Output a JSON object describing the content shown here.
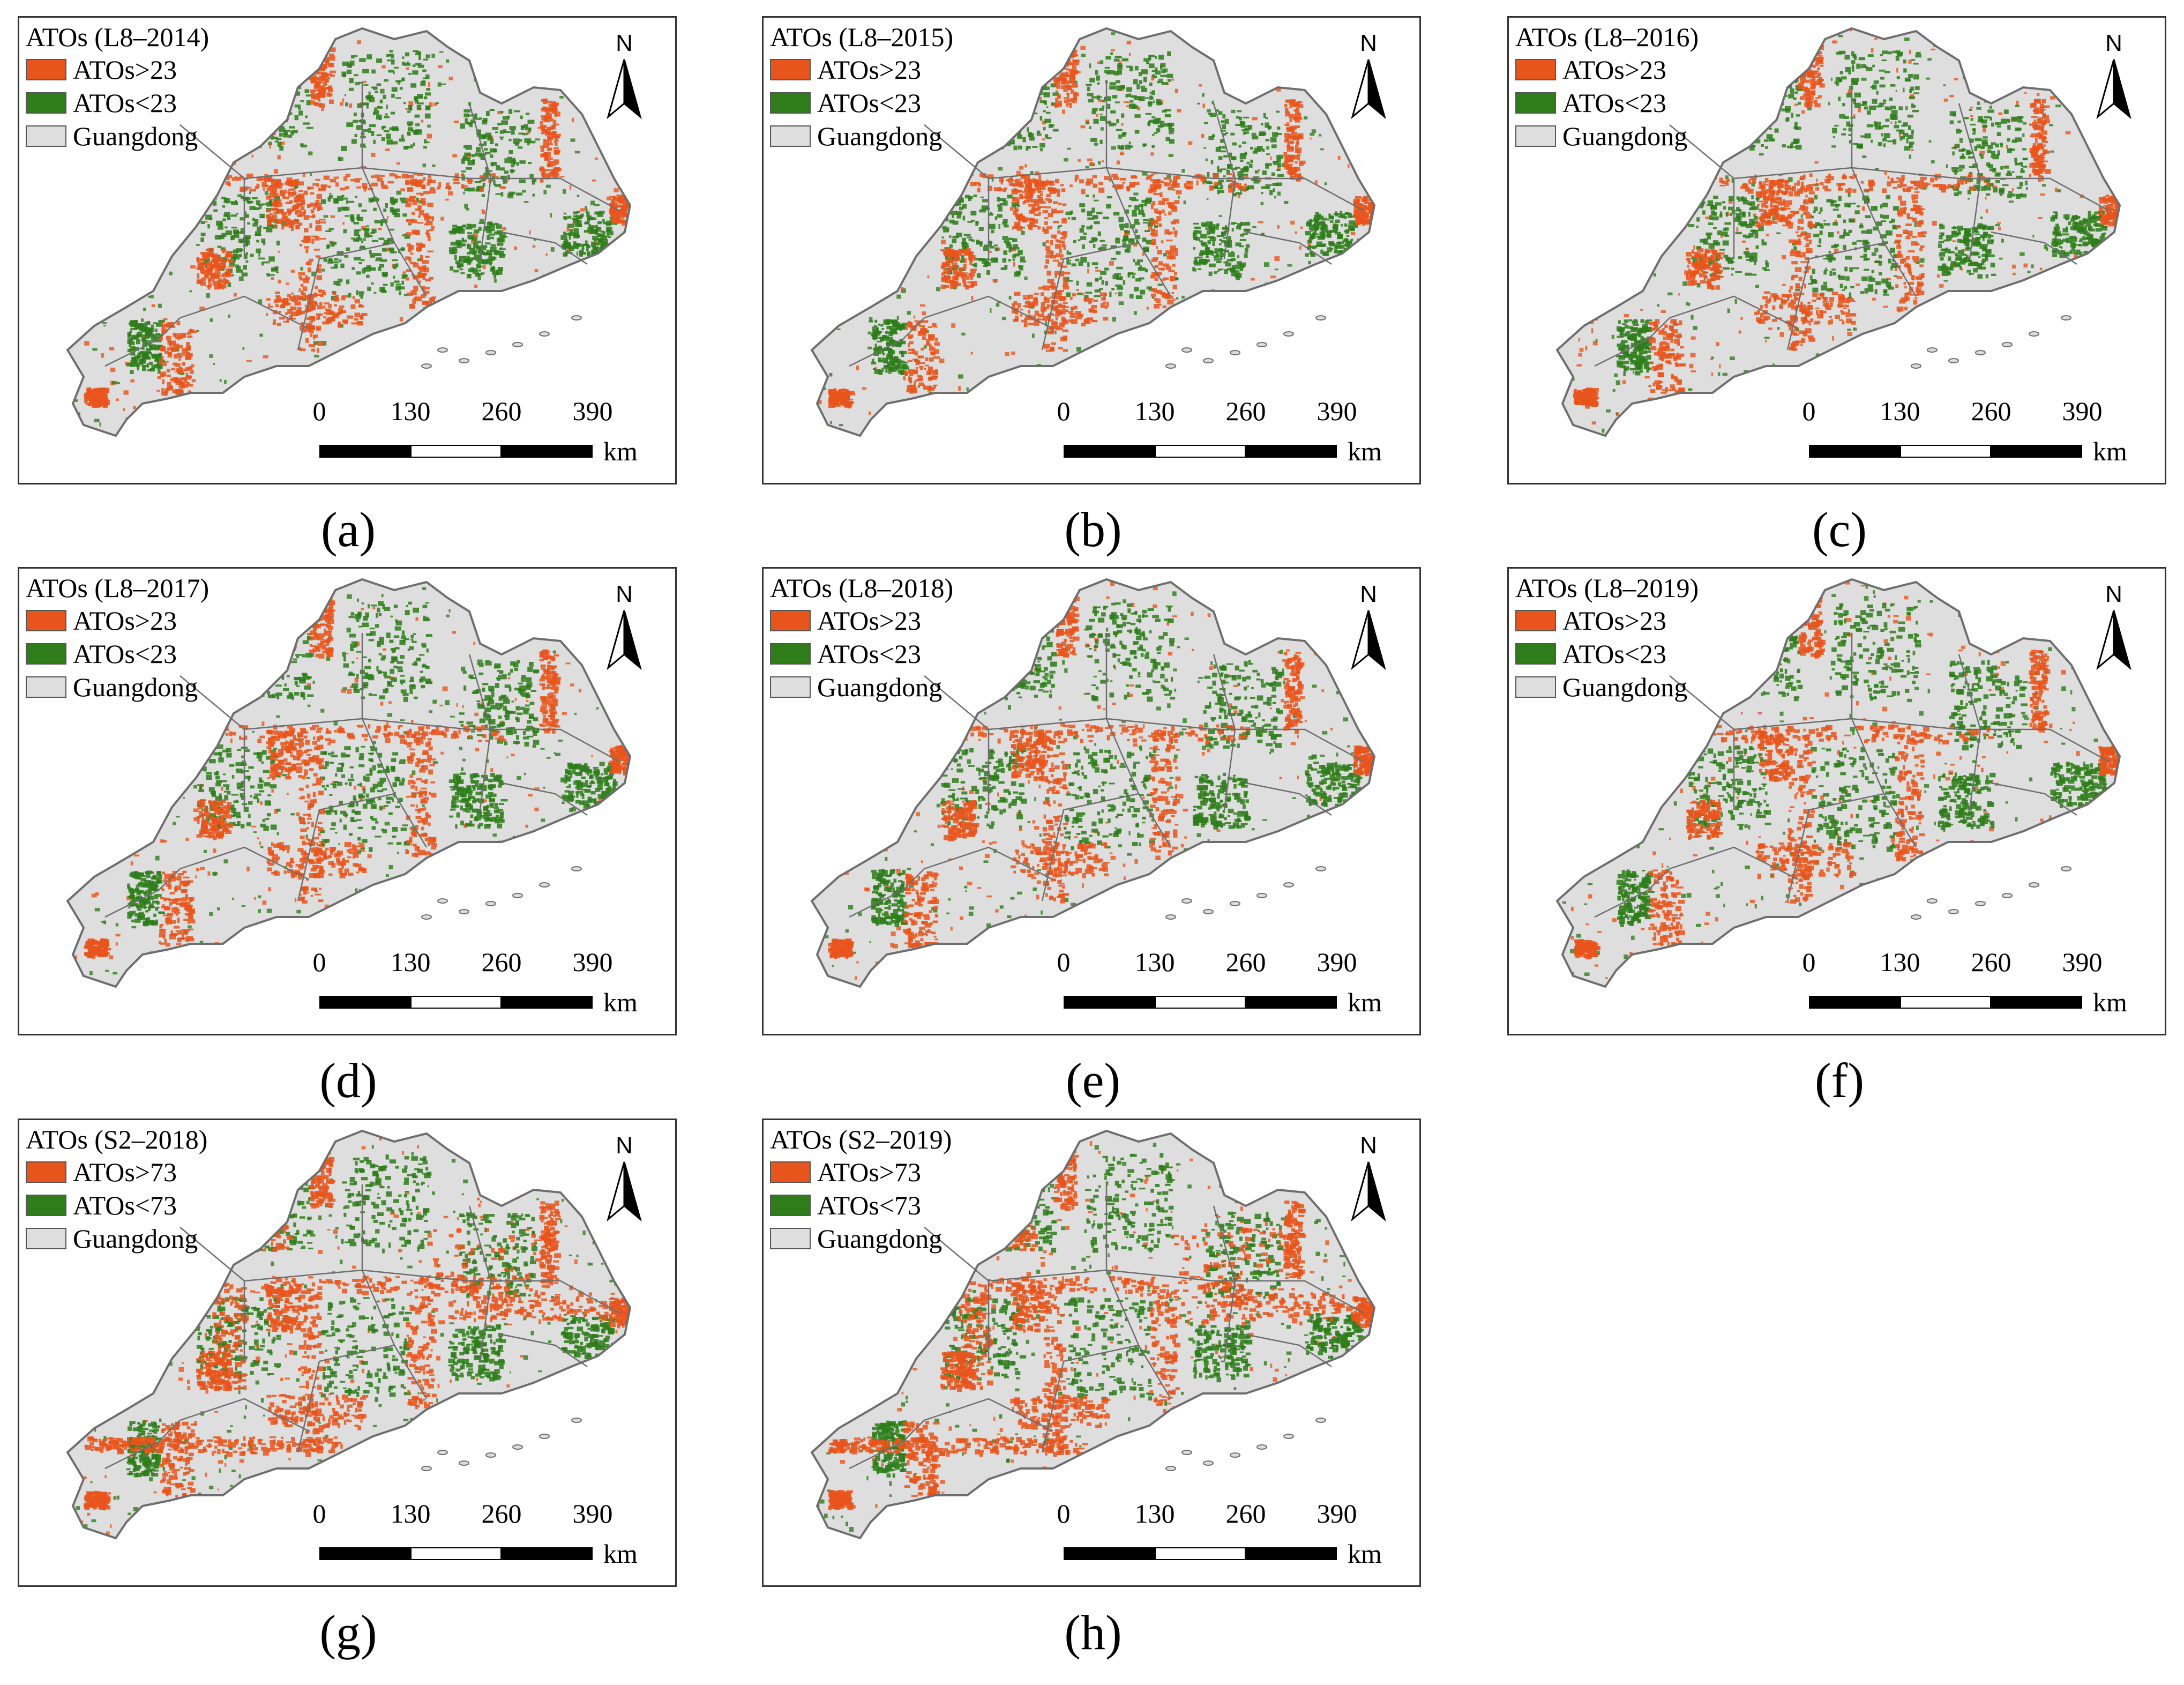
{
  "colors": {
    "high": "#e8551c",
    "low": "#2e7d1a",
    "region": "#dedede",
    "boundary": "#6e6e6e"
  },
  "legend_items": [
    "high",
    "low",
    "region"
  ],
  "scale": {
    "ticks": [
      "0",
      "130",
      "260",
      "390"
    ],
    "unit": "km"
  },
  "north_label": "N",
  "panels": [
    {
      "title": "ATOs (L8–2014)",
      "labels": {
        "high": "ATOs>23",
        "low": "ATOs<23",
        "region": "Guangdong"
      },
      "caption": "(a)"
    },
    {
      "title": "ATOs (L8–2015)",
      "labels": {
        "high": "ATOs>23",
        "low": "ATOs<23",
        "region": "Guangdong"
      },
      "caption": "(b)"
    },
    {
      "title": "ATOs (L8–2016)",
      "labels": {
        "high": "ATOs>23",
        "low": "ATOs<23",
        "region": "Guangdong"
      },
      "caption": "(c)"
    },
    {
      "title": "ATOs (L8–2017)",
      "labels": {
        "high": "ATOs>23",
        "low": "ATOs<23",
        "region": "Guangdong"
      },
      "caption": "(d)"
    },
    {
      "title": "ATOs (L8–2018)",
      "labels": {
        "high": "ATOs>23",
        "low": "ATOs<23",
        "region": "Guangdong"
      },
      "caption": "(e)"
    },
    {
      "title": "ATOs (L8–2019)",
      "labels": {
        "high": "ATOs>23",
        "low": "ATOs<23",
        "region": "Guangdong"
      },
      "caption": "(f)"
    },
    {
      "title": "ATOs (S2–2018)",
      "labels": {
        "high": "ATOs>73",
        "low": "ATOs<73",
        "region": "Guangdong"
      },
      "caption": "(g)"
    },
    {
      "title": "ATOs (S2–2019)",
      "labels": {
        "high": "ATOs>73",
        "low": "ATOs<73",
        "region": "Guangdong"
      },
      "caption": "(h)"
    }
  ]
}
